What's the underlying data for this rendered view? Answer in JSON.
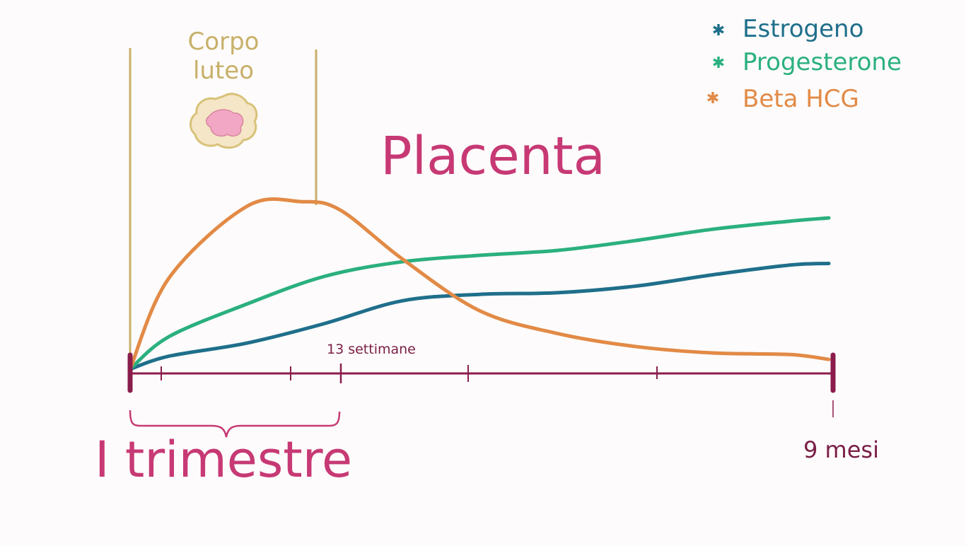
{
  "chart_data": {
    "type": "line",
    "xlabel": "",
    "ylabel": "",
    "grid": false,
    "legend_position": "top-right",
    "xlim": [
      0,
      9
    ],
    "ylim": [
      0,
      100
    ],
    "x_tick_labels": [
      "13 settimane",
      "9 mesi"
    ],
    "annotations": {
      "corpo_luteo": "Corpo luteo",
      "placenta": "Placenta",
      "trimester": "I trimestre"
    },
    "series": [
      {
        "name": "Estrogeno",
        "color": "#1f6f8b",
        "x": [
          0,
          0.5,
          1.5,
          2.5,
          3.5,
          4.5,
          5.5,
          6.5,
          7.5,
          8.5,
          9
        ],
        "values": [
          0,
          8,
          16,
          28,
          42,
          46,
          47,
          51,
          58,
          64,
          65
        ]
      },
      {
        "name": "Progesterone",
        "color": "#2bb07f",
        "x": [
          0,
          0.5,
          1.5,
          2.5,
          3.5,
          4.5,
          5.5,
          6.5,
          7.5,
          8.5,
          9
        ],
        "values": [
          0,
          20,
          40,
          57,
          66,
          70,
          73,
          79,
          86,
          91,
          93
        ]
      },
      {
        "name": "Beta HCG",
        "color": "#e28a46",
        "x": [
          0,
          0.5,
          1.5,
          2.2,
          2.7,
          3.5,
          4.5,
          5.5,
          6.5,
          7.5,
          8.5,
          9
        ],
        "values": [
          0,
          56,
          100,
          103,
          98,
          68,
          36,
          22,
          14,
          10,
          9,
          6
        ]
      }
    ]
  },
  "colors": {
    "axis": "#8a1d4c",
    "tan": "#c8b06a",
    "magenta": "#c73974",
    "label_text": "#7a1e46"
  }
}
